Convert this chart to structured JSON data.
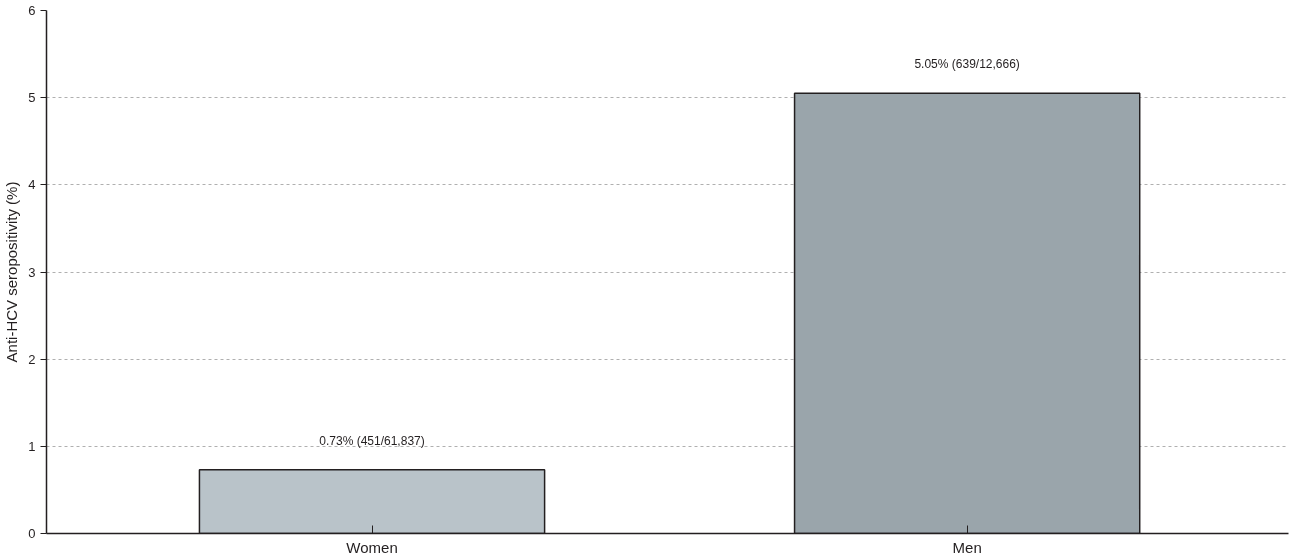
{
  "chart_data": {
    "type": "bar",
    "ylabel": "Anti-HCV seropositivity (%)",
    "categories": [
      "Women",
      "Men"
    ],
    "values": [
      0.73,
      5.05
    ],
    "colors": [
      "#b9c3c9",
      "#9aa5ab"
    ],
    "value_labels": [
      "0.73% (451/61,837)",
      "5.05% (639/12,666)"
    ],
    "ylim": [
      0,
      6
    ],
    "yticks": [
      0,
      1,
      2,
      3,
      4,
      5,
      6
    ],
    "grid": "y"
  }
}
